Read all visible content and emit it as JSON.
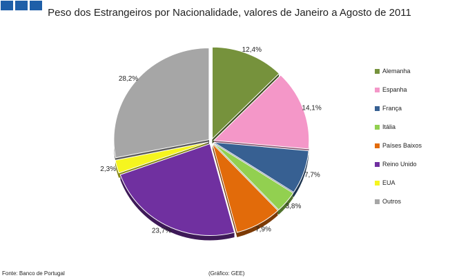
{
  "logo": {
    "color": "#1f5fa8"
  },
  "chart_data": {
    "type": "pie",
    "title": "Peso dos Estrangeiros por Nacionalidade, valores de Janeiro a Agosto de 2011",
    "unit": "%",
    "legend_position": "right",
    "slices": [
      {
        "name": "Alemanha",
        "value": 12.4,
        "label": "12,4%",
        "color": "#76923c"
      },
      {
        "name": "Espanha",
        "value": 14.1,
        "label": "14,1%",
        "color": "#f497c8"
      },
      {
        "name": "França",
        "value": 7.7,
        "label": "7,7%",
        "color": "#376092"
      },
      {
        "name": "Itália",
        "value": 3.8,
        "label": "3,8%",
        "color": "#92d050"
      },
      {
        "name": "Países Baixos",
        "value": 7.9,
        "label": "7,9%",
        "color": "#e26b0a"
      },
      {
        "name": "Reino Unido",
        "value": 23.7,
        "label": "23,7%",
        "color": "#7030a0"
      },
      {
        "name": "EUA",
        "value": 2.3,
        "label": "2,3%",
        "color": "#f5f51f"
      },
      {
        "name": "Outros",
        "value": 28.2,
        "label": "28,2%",
        "color": "#a6a6a6"
      }
    ]
  },
  "footer": {
    "source": "Fonte: Banco de Portugal",
    "credit": "(Gráfico: GEE)"
  }
}
